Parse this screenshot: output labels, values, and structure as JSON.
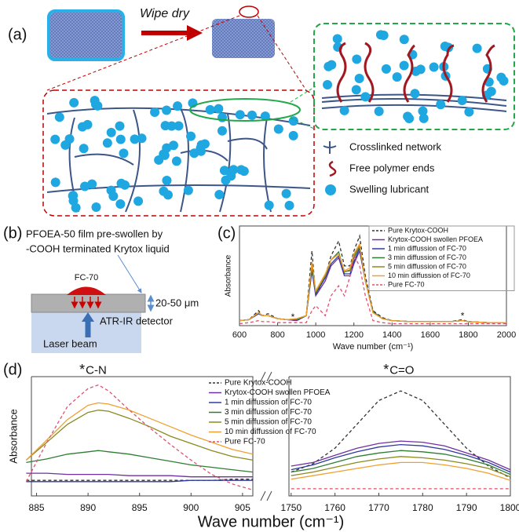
{
  "labels": {
    "a": "(a)",
    "wipe": "Wipe dry",
    "legend_network": "Crosslinked network",
    "legend_ends": "Free polymer ends",
    "legend_lubricant": "Swelling lubricant",
    "b": "(b)",
    "b_line1": "PFOEA-50 film pre-swollen by",
    "b_line2": "-COOH terminated Krytox liquid",
    "fc70": "FC-70",
    "thickness": "20-50 μm",
    "detector": "ATR-IR detector",
    "laser": "Laser beam"
  },
  "chart_data": [
    {
      "type": "line",
      "panel": "(c)",
      "xlabel": "Wave number (cm⁻¹)",
      "ylabel": "Absorbance",
      "xlim": [
        600,
        2000
      ],
      "xticks": [
        600,
        800,
        1000,
        1200,
        1400,
        1600,
        1800,
        2000
      ],
      "ylim": [
        0,
        1
      ],
      "x": [
        600,
        650,
        700,
        720,
        750,
        800,
        850,
        900,
        950,
        980,
        1000,
        1050,
        1080,
        1120,
        1150,
        1180,
        1200,
        1230,
        1260,
        1300,
        1350,
        1400,
        1500,
        1600,
        1700,
        1770,
        1800,
        1900,
        2000
      ],
      "markers": [
        {
          "text": "*",
          "x": 880,
          "y": 0.08,
          "color": "#2a2ad0"
        },
        {
          "text": "*",
          "x": 1770,
          "y": 0.09,
          "color": "#e03030"
        }
      ],
      "series": [
        {
          "name": "Pure Krytox-COOH",
          "color": "#333333",
          "style": "dashed",
          "values": [
            0.05,
            0.06,
            0.15,
            0.1,
            0.12,
            0.07,
            0.06,
            0.05,
            0.1,
            0.75,
            0.3,
            0.5,
            0.7,
            0.85,
            0.6,
            0.6,
            0.75,
            0.9,
            0.5,
            0.15,
            0.08,
            0.05,
            0.04,
            0.04,
            0.04,
            0.06,
            0.04,
            0.03,
            0.03
          ]
        },
        {
          "name": "Krytox-COOH swollen PFOEA",
          "color": "#7030a0",
          "style": "solid",
          "values": [
            0.05,
            0.06,
            0.12,
            0.1,
            0.1,
            0.07,
            0.06,
            0.05,
            0.1,
            0.55,
            0.3,
            0.45,
            0.6,
            0.68,
            0.5,
            0.5,
            0.62,
            0.75,
            0.45,
            0.14,
            0.07,
            0.05,
            0.04,
            0.04,
            0.04,
            0.05,
            0.04,
            0.03,
            0.03
          ]
        },
        {
          "name": "1 min diffussion of FC-70",
          "color": "#2e3aa0",
          "style": "solid",
          "values": [
            0.05,
            0.06,
            0.12,
            0.1,
            0.1,
            0.07,
            0.06,
            0.06,
            0.1,
            0.56,
            0.32,
            0.48,
            0.62,
            0.7,
            0.52,
            0.52,
            0.64,
            0.78,
            0.45,
            0.14,
            0.07,
            0.05,
            0.04,
            0.04,
            0.04,
            0.05,
            0.04,
            0.03,
            0.03
          ]
        },
        {
          "name": "3 min diffussion of FC-70",
          "color": "#2e7d32",
          "style": "solid",
          "values": [
            0.05,
            0.06,
            0.13,
            0.1,
            0.1,
            0.07,
            0.06,
            0.06,
            0.1,
            0.6,
            0.33,
            0.5,
            0.66,
            0.74,
            0.54,
            0.55,
            0.68,
            0.8,
            0.45,
            0.14,
            0.07,
            0.05,
            0.04,
            0.04,
            0.04,
            0.05,
            0.04,
            0.03,
            0.03
          ]
        },
        {
          "name": "5 min diffussion of FC-70",
          "color": "#8a8a1e",
          "style": "solid",
          "values": [
            0.05,
            0.06,
            0.13,
            0.1,
            0.1,
            0.07,
            0.06,
            0.07,
            0.1,
            0.62,
            0.34,
            0.5,
            0.66,
            0.72,
            0.54,
            0.56,
            0.7,
            0.8,
            0.45,
            0.13,
            0.07,
            0.05,
            0.04,
            0.04,
            0.04,
            0.05,
            0.04,
            0.03,
            0.03
          ]
        },
        {
          "name": "10 min diffussion of FC-70",
          "color": "#f0a030",
          "style": "solid",
          "values": [
            0.05,
            0.06,
            0.13,
            0.1,
            0.1,
            0.07,
            0.06,
            0.07,
            0.1,
            0.64,
            0.35,
            0.52,
            0.66,
            0.72,
            0.55,
            0.58,
            0.72,
            0.82,
            0.45,
            0.13,
            0.07,
            0.05,
            0.04,
            0.04,
            0.04,
            0.05,
            0.04,
            0.03,
            0.03
          ]
        },
        {
          "name": "Pure FC-70",
          "color": "#e05070",
          "style": "dashed",
          "values": [
            0.02,
            0.03,
            0.05,
            0.04,
            0.04,
            0.03,
            0.03,
            0.03,
            0.03,
            0.15,
            0.2,
            0.1,
            0.3,
            0.4,
            0.3,
            0.5,
            0.7,
            0.6,
            0.3,
            0.05,
            0.03,
            0.02,
            0.02,
            0.02,
            0.02,
            0.02,
            0.02,
            0.02,
            0.02
          ]
        }
      ]
    },
    {
      "type": "line",
      "panel": "(d)",
      "xlabel": "Wave number (cm⁻¹)",
      "ylabel": "Absorbance",
      "xlims": [
        [
          884.5,
          906
        ],
        [
          1749.5,
          1800
        ]
      ],
      "xticks": [
        885,
        890,
        895,
        900,
        905,
        1750,
        1760,
        1770,
        1780,
        1790,
        1800
      ],
      "ylim": [
        0,
        1
      ],
      "x": [
        884,
        886,
        888,
        890,
        891,
        892,
        894,
        896,
        898,
        900,
        902,
        904,
        906,
        1750,
        1755,
        1760,
        1765,
        1770,
        1775,
        1780,
        1785,
        1790,
        1795,
        1800
      ],
      "annotations": [
        {
          "marker": "*",
          "text": "C-N",
          "color": "#2a2ad0",
          "x": 890,
          "y": 1.05
        },
        {
          "marker": "*",
          "text": "C=O",
          "color": "#e03030",
          "x": 1773,
          "y": 1.05
        }
      ],
      "series": [
        {
          "name": "Pure Krytox-COOH",
          "color": "#333333",
          "style": "dashed",
          "values": [
            0.13,
            0.13,
            0.13,
            0.13,
            0.13,
            0.13,
            0.13,
            0.13,
            0.13,
            0.13,
            0.13,
            0.14,
            0.14,
            0.2,
            0.27,
            0.4,
            0.6,
            0.8,
            0.88,
            0.8,
            0.6,
            0.4,
            0.25,
            0.15
          ]
        },
        {
          "name": "Krytox-COOH swollen PFOEA",
          "color": "#7030a0",
          "style": "solid",
          "values": [
            0.19,
            0.19,
            0.18,
            0.18,
            0.18,
            0.18,
            0.17,
            0.17,
            0.17,
            0.16,
            0.16,
            0.16,
            0.16,
            0.25,
            0.28,
            0.34,
            0.4,
            0.44,
            0.46,
            0.45,
            0.42,
            0.36,
            0.3,
            0.22
          ]
        },
        {
          "name": "1 min diffussion of FC-70",
          "color": "#2e3aa0",
          "style": "solid",
          "values": [
            0.12,
            0.12,
            0.12,
            0.12,
            0.12,
            0.12,
            0.12,
            0.12,
            0.12,
            0.13,
            0.13,
            0.13,
            0.13,
            0.22,
            0.26,
            0.32,
            0.37,
            0.41,
            0.43,
            0.42,
            0.39,
            0.34,
            0.28,
            0.2
          ]
        },
        {
          "name": "3 min diffussion of FC-70",
          "color": "#2e7d32",
          "style": "solid",
          "values": [
            0.28,
            0.31,
            0.35,
            0.37,
            0.38,
            0.37,
            0.35,
            0.32,
            0.29,
            0.26,
            0.24,
            0.22,
            0.2,
            0.2,
            0.23,
            0.28,
            0.33,
            0.36,
            0.38,
            0.37,
            0.35,
            0.31,
            0.26,
            0.18
          ]
        },
        {
          "name": "5 min diffussion of FC-70",
          "color": "#8a8a1e",
          "style": "solid",
          "values": [
            0.3,
            0.45,
            0.6,
            0.7,
            0.72,
            0.71,
            0.65,
            0.58,
            0.5,
            0.44,
            0.38,
            0.33,
            0.3,
            0.17,
            0.2,
            0.24,
            0.28,
            0.31,
            0.33,
            0.32,
            0.3,
            0.27,
            0.23,
            0.16
          ]
        },
        {
          "name": "10 min diffussion of FC-70",
          "color": "#f0a030",
          "style": "solid",
          "values": [
            0.3,
            0.47,
            0.64,
            0.76,
            0.78,
            0.77,
            0.72,
            0.65,
            0.58,
            0.51,
            0.45,
            0.39,
            0.35,
            0.14,
            0.17,
            0.2,
            0.23,
            0.26,
            0.28,
            0.28,
            0.26,
            0.23,
            0.19,
            0.13
          ]
        },
        {
          "name": "Pure FC-70",
          "color": "#e05070",
          "style": "dashed",
          "values": [
            0.12,
            0.45,
            0.75,
            0.9,
            0.93,
            0.88,
            0.72,
            0.57,
            0.43,
            0.3,
            0.18,
            0.1,
            0.05,
            0.06,
            0.06,
            0.06,
            0.06,
            0.06,
            0.06,
            0.06,
            0.06,
            0.06,
            0.06,
            0.06
          ]
        }
      ]
    }
  ]
}
